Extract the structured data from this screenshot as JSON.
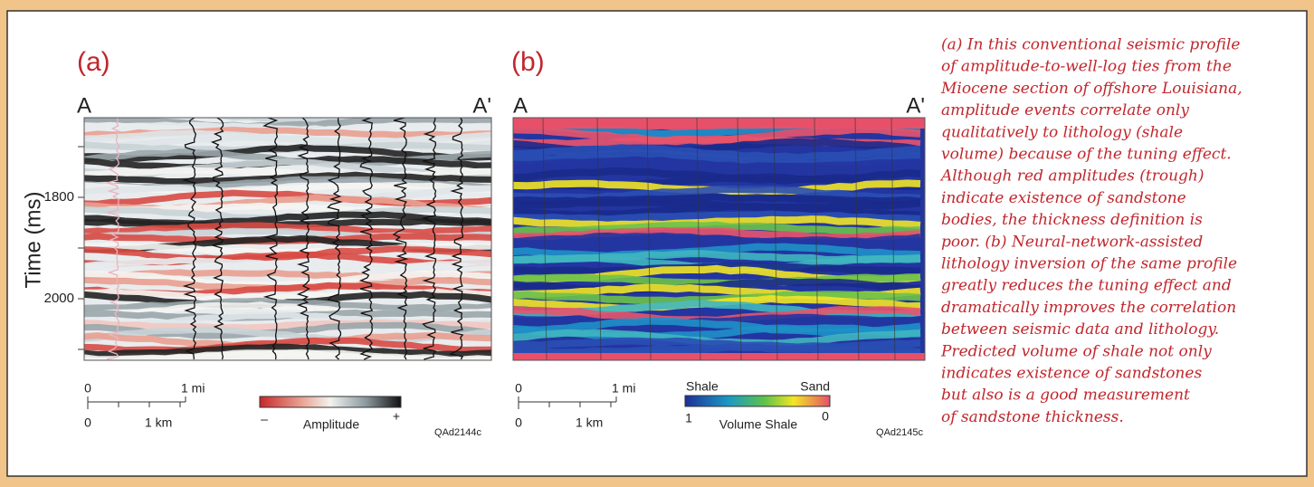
{
  "panel_a": {
    "label": "(a)",
    "left_end": "A",
    "right_end": "A'",
    "axis_label": "Time (ms)",
    "ticks": [
      "1800",
      "2000"
    ],
    "scale": {
      "mi_zero": "0",
      "mi": "1  mi",
      "km_zero": "0",
      "km": "1  km"
    },
    "colorbar": {
      "title": "Amplitude",
      "low": "–",
      "high": "+"
    },
    "code": "QAd2144c"
  },
  "panel_b": {
    "label": "(b)",
    "left_end": "A",
    "right_end": "A'",
    "scale": {
      "mi_zero": "0",
      "mi": "1  mi",
      "km_zero": "0",
      "km": "1  km"
    },
    "colorbar": {
      "left_top": "Shale",
      "right_top": "Sand",
      "title": "Volume Shale",
      "low": "1",
      "high": "0"
    },
    "code": "QAd2145c"
  },
  "caption": [
    "(a) In this conventional seismic profile",
    "of amplitude-to-well-log ties from the",
    "Miocene section of offshore Louisiana,",
    "amplitude events correlate only",
    "qualitatively to lithology (shale",
    "volume) because of the tuning effect.",
    "Although red amplitudes (trough)",
    "indicate existence of sandstone",
    "bodies, the thickness definition is",
    "poor. (b) Neural-network-assisted",
    "lithology inversion of the same profile",
    "greatly reduces the tuning effect and",
    "dramatically improves the correlation",
    "between seismic data and lithology.",
    "Predicted volume of shale not only",
    "indicates existence of sandstones",
    "but also is a good measurement",
    "of sandstone thickness."
  ]
}
